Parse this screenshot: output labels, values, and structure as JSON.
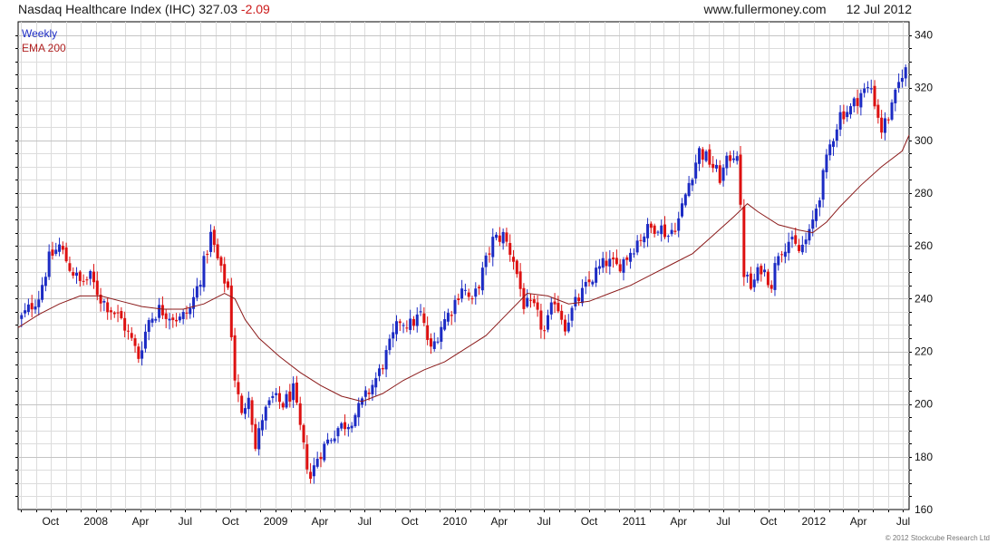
{
  "header": {
    "index_name": "Nasdaq Healthcare Index (IHC)",
    "last_value": "327.03",
    "change": "-2.09",
    "website": "www.fullermoney.com",
    "date": "12 Jul 2012"
  },
  "copyright": "© 2012 Stockcube Research Ltd",
  "chart_data": {
    "type": "candlestick",
    "frequency_label": "Weekly",
    "overlay_label": "EMA 200",
    "ylim": [
      160,
      345
    ],
    "yticks": [
      160,
      180,
      200,
      220,
      240,
      260,
      280,
      300,
      320,
      340
    ],
    "y_axis_side": "right",
    "x_range": [
      "2007-07-27",
      "2012-07-13"
    ],
    "xtick_labels": [
      {
        "date": "2007-10-01",
        "label": "Oct"
      },
      {
        "date": "2008-01-01",
        "label": "2008"
      },
      {
        "date": "2008-04-01",
        "label": "Apr"
      },
      {
        "date": "2008-07-01",
        "label": "Jul"
      },
      {
        "date": "2008-10-01",
        "label": "Oct"
      },
      {
        "date": "2009-01-01",
        "label": "2009"
      },
      {
        "date": "2009-04-01",
        "label": "Apr"
      },
      {
        "date": "2009-07-01",
        "label": "Jul"
      },
      {
        "date": "2009-10-01",
        "label": "Oct"
      },
      {
        "date": "2010-01-01",
        "label": "2010"
      },
      {
        "date": "2010-04-01",
        "label": "Apr"
      },
      {
        "date": "2010-07-01",
        "label": "Jul"
      },
      {
        "date": "2010-10-01",
        "label": "Oct"
      },
      {
        "date": "2011-01-01",
        "label": "2011"
      },
      {
        "date": "2011-04-01",
        "label": "Apr"
      },
      {
        "date": "2011-07-01",
        "label": "Jul"
      },
      {
        "date": "2011-10-01",
        "label": "Oct"
      },
      {
        "date": "2012-01-01",
        "label": "2012"
      },
      {
        "date": "2012-04-01",
        "label": "Apr"
      },
      {
        "date": "2012-07-01",
        "label": "Jul"
      }
    ],
    "grid": true,
    "colors": {
      "up": "#1c2bc4",
      "down": "#dd1111",
      "ema": "#8b1a1a",
      "grid": "#dcdcdc"
    },
    "close_path": [
      [
        "2007-07-27",
        231
      ],
      [
        "2007-08-17",
        236
      ],
      [
        "2007-09-07",
        241
      ],
      [
        "2007-09-28",
        255
      ],
      [
        "2007-10-19",
        260
      ],
      [
        "2007-11-09",
        252
      ],
      [
        "2007-11-30",
        246
      ],
      [
        "2007-12-21",
        248
      ],
      [
        "2008-01-11",
        240
      ],
      [
        "2008-02-01",
        236
      ],
      [
        "2008-02-22",
        232
      ],
      [
        "2008-03-14",
        224
      ],
      [
        "2008-03-28",
        218
      ],
      [
        "2008-04-18",
        232
      ],
      [
        "2008-05-09",
        236
      ],
      [
        "2008-05-30",
        234
      ],
      [
        "2008-06-20",
        232
      ],
      [
        "2008-07-11",
        236
      ],
      [
        "2008-08-01",
        248
      ],
      [
        "2008-08-22",
        264
      ],
      [
        "2008-09-12",
        250
      ],
      [
        "2008-09-26",
        244
      ],
      [
        "2008-10-10",
        210
      ],
      [
        "2008-10-24",
        195
      ],
      [
        "2008-11-07",
        205
      ],
      [
        "2008-11-21",
        183
      ],
      [
        "2008-12-05",
        195
      ],
      [
        "2008-12-26",
        202
      ],
      [
        "2009-01-16",
        200
      ],
      [
        "2009-02-06",
        205
      ],
      [
        "2009-02-27",
        183
      ],
      [
        "2009-03-13",
        172
      ],
      [
        "2009-03-27",
        180
      ],
      [
        "2009-04-17",
        186
      ],
      [
        "2009-05-08",
        191
      ],
      [
        "2009-05-29",
        193
      ],
      [
        "2009-06-19",
        198
      ],
      [
        "2009-07-10",
        205
      ],
      [
        "2009-07-31",
        212
      ],
      [
        "2009-08-21",
        222
      ],
      [
        "2009-09-11",
        232
      ],
      [
        "2009-10-02",
        230
      ],
      [
        "2009-10-23",
        234
      ],
      [
        "2009-11-13",
        220
      ],
      [
        "2009-12-04",
        230
      ],
      [
        "2009-12-25",
        236
      ],
      [
        "2010-01-15",
        245
      ],
      [
        "2010-02-05",
        238
      ],
      [
        "2010-02-26",
        250
      ],
      [
        "2010-03-19",
        262
      ],
      [
        "2010-04-09",
        264
      ],
      [
        "2010-04-30",
        255
      ],
      [
        "2010-05-21",
        238
      ],
      [
        "2010-06-11",
        236
      ],
      [
        "2010-07-02",
        227
      ],
      [
        "2010-07-23",
        240
      ],
      [
        "2010-08-13",
        230
      ],
      [
        "2010-09-03",
        238
      ],
      [
        "2010-09-24",
        244
      ],
      [
        "2010-10-15",
        250
      ],
      [
        "2010-11-05",
        254
      ],
      [
        "2010-11-26",
        252
      ],
      [
        "2010-12-17",
        256
      ],
      [
        "2011-01-07",
        262
      ],
      [
        "2011-01-28",
        266
      ],
      [
        "2011-02-18",
        268
      ],
      [
        "2011-03-11",
        264
      ],
      [
        "2011-04-01",
        270
      ],
      [
        "2011-04-22",
        284
      ],
      [
        "2011-05-13",
        296
      ],
      [
        "2011-06-03",
        292
      ],
      [
        "2011-06-24",
        286
      ],
      [
        "2011-07-15",
        294
      ],
      [
        "2011-07-29",
        296
      ],
      [
        "2011-08-12",
        250
      ],
      [
        "2011-08-26",
        244
      ],
      [
        "2011-09-16",
        252
      ],
      [
        "2011-10-07",
        246
      ],
      [
        "2011-10-21",
        258
      ],
      [
        "2011-11-11",
        262
      ],
      [
        "2011-12-02",
        258
      ],
      [
        "2011-12-23",
        264
      ],
      [
        "2012-01-13",
        280
      ],
      [
        "2012-02-03",
        298
      ],
      [
        "2012-02-24",
        310
      ],
      [
        "2012-03-16",
        312
      ],
      [
        "2012-04-06",
        318
      ],
      [
        "2012-04-27",
        320
      ],
      [
        "2012-05-18",
        304
      ],
      [
        "2012-06-08",
        312
      ],
      [
        "2012-06-29",
        326
      ],
      [
        "2012-07-13",
        327.03
      ]
    ],
    "ema_200": [
      [
        "2007-07-27",
        229
      ],
      [
        "2007-09-07",
        234
      ],
      [
        "2007-10-19",
        238
      ],
      [
        "2007-11-30",
        241
      ],
      [
        "2008-01-11",
        241
      ],
      [
        "2008-02-22",
        239
      ],
      [
        "2008-04-04",
        237
      ],
      [
        "2008-05-16",
        236
      ],
      [
        "2008-06-27",
        236
      ],
      [
        "2008-08-08",
        238
      ],
      [
        "2008-09-19",
        242
      ],
      [
        "2008-10-10",
        240
      ],
      [
        "2008-10-31",
        232
      ],
      [
        "2008-11-28",
        225
      ],
      [
        "2009-01-09",
        218
      ],
      [
        "2009-02-20",
        212
      ],
      [
        "2009-04-03",
        207
      ],
      [
        "2009-05-15",
        203
      ],
      [
        "2009-06-26",
        201
      ],
      [
        "2009-08-07",
        204
      ],
      [
        "2009-09-18",
        209
      ],
      [
        "2009-10-30",
        213
      ],
      [
        "2009-12-11",
        216
      ],
      [
        "2010-01-22",
        221
      ],
      [
        "2010-03-05",
        226
      ],
      [
        "2010-04-16",
        234
      ],
      [
        "2010-05-28",
        242
      ],
      [
        "2010-07-09",
        241
      ],
      [
        "2010-08-20",
        238
      ],
      [
        "2010-10-01",
        239
      ],
      [
        "2010-11-12",
        242
      ],
      [
        "2010-12-24",
        245
      ],
      [
        "2011-02-04",
        249
      ],
      [
        "2011-03-18",
        253
      ],
      [
        "2011-04-29",
        257
      ],
      [
        "2011-06-10",
        264
      ],
      [
        "2011-07-22",
        271
      ],
      [
        "2011-08-19",
        276
      ],
      [
        "2011-09-09",
        273
      ],
      [
        "2011-10-21",
        268
      ],
      [
        "2011-12-02",
        266
      ],
      [
        "2011-12-30",
        265
      ],
      [
        "2012-01-27",
        269
      ],
      [
        "2012-02-24",
        275
      ],
      [
        "2012-04-06",
        283
      ],
      [
        "2012-05-18",
        290
      ],
      [
        "2012-06-29",
        296
      ],
      [
        "2012-07-13",
        302
      ]
    ]
  }
}
